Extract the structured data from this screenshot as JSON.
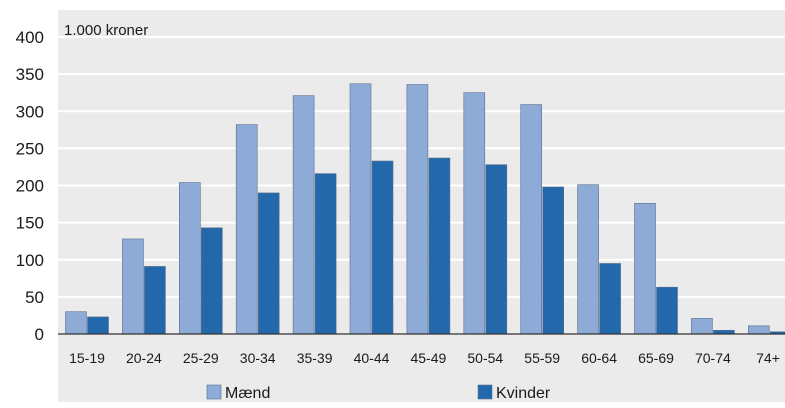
{
  "chart_data": {
    "type": "bar",
    "unit_label": "1.000 kroner",
    "categories": [
      "15-19",
      "20-24",
      "25-29",
      "30-34",
      "35-39",
      "40-44",
      "45-49",
      "50-54",
      "55-59",
      "60-64",
      "65-69",
      "70-74",
      "74+"
    ],
    "series": [
      {
        "name": "Mænd",
        "color": "#8eaad6",
        "values": [
          30,
          128,
          204,
          282,
          321,
          337,
          336,
          325,
          309,
          201,
          176,
          21,
          11
        ]
      },
      {
        "name": "Kvinder",
        "color": "#2368aa",
        "values": [
          23,
          91,
          143,
          190,
          216,
          233,
          237,
          228,
          198,
          95,
          63,
          5,
          3
        ]
      }
    ],
    "ylim": [
      0,
      400
    ],
    "yticks": [
      0,
      50,
      100,
      150,
      200,
      250,
      300,
      350,
      400
    ],
    "grid": true,
    "legend_position": "bottom",
    "colors": {
      "background": "#ebebeb",
      "gridline": "#ffffff"
    }
  }
}
